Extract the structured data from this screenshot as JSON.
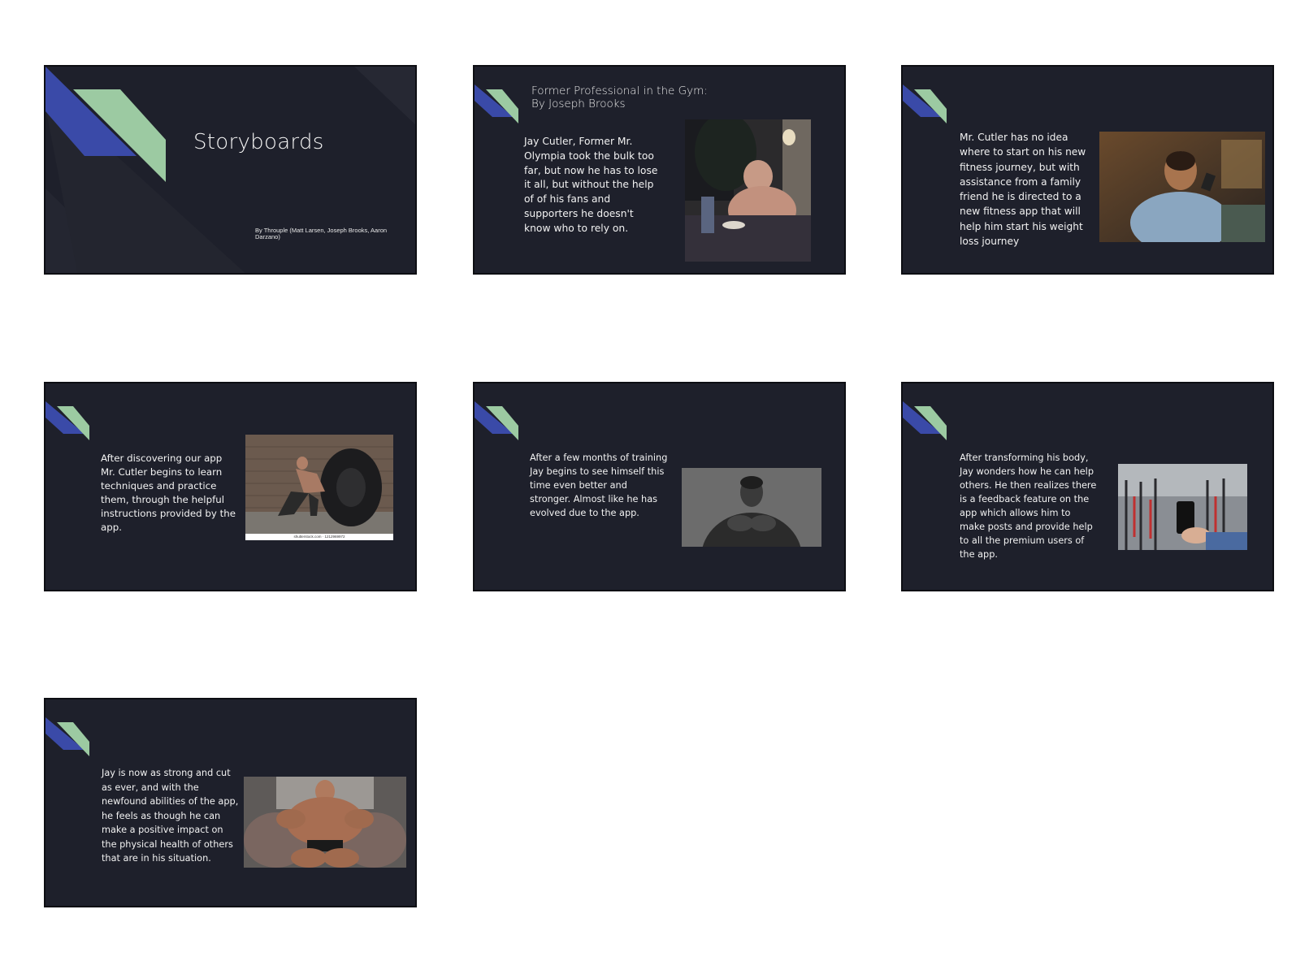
{
  "slides": [
    {
      "title": "Storyboards",
      "byline": "By Throuple (Matt Larsen, Joseph Brooks, Aaron Darzano)"
    },
    {
      "heading_line1": "Former Professional in the Gym:",
      "heading_line2": "By Joseph Brooks",
      "text": "Jay Cutler, Former Mr. Olympia took the bulk too far, but now he has to lose it all, but without the help of of his fans and supporters he doesn't know who to rely on.",
      "image": "man-eating-at-table-photo"
    },
    {
      "text": "Mr. Cutler has no idea where to start on his new fitness journey, but with assistance from a family friend he is directed to a new fitness app that will help him start his weight loss journey",
      "image": "man-on-couch-with-phone-photo"
    },
    {
      "text": "After discovering our app Mr. Cutler begins to learn techniques and practice them, through the helpful instructions provided by the app.",
      "image": "man-flipping-tire-photo",
      "caption": "shutterstock.com · 1212969972"
    },
    {
      "text": "After a few months of training Jay begins to see himself this time even better and stronger. Almost like he has evolved due to the app.",
      "image": "muscular-man-portrait-photo"
    },
    {
      "text": "After transforming his body, Jay wonders how he can help others. He then realizes there is a feedback feature on the app which allows him to make posts and provide help to all the premium users of the app.",
      "image": "hand-holding-phone-photo"
    },
    {
      "text": "Jay is now as strong and cut as ever, and with the newfound abilities of the app, he feels as though he can make a positive impact on the physical health of others that are in his situation.",
      "image": "bodybuilder-in-armchair-photo"
    }
  ],
  "colors": {
    "slide_bg": "#1e202b",
    "accent_blue": "#3a4aa8",
    "accent_green": "#9ccaa2",
    "text": "#f2f2f2"
  }
}
